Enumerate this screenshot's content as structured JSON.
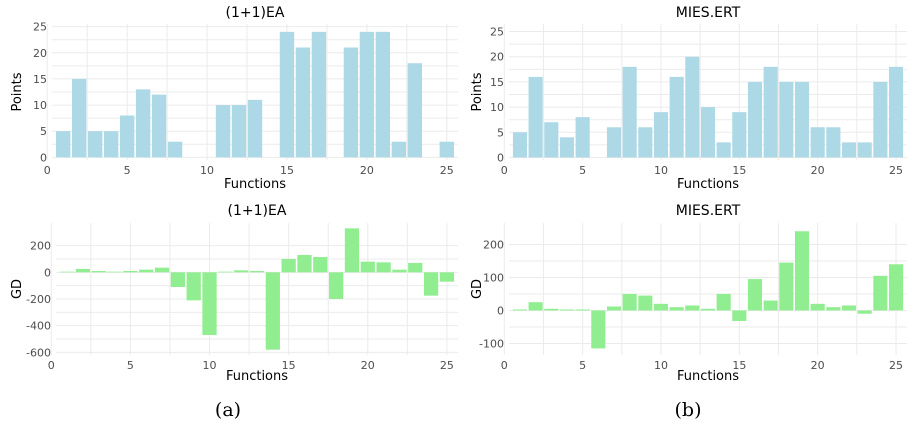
{
  "captions": [
    "(a)",
    "(b)"
  ],
  "chart_data": [
    {
      "type": "bar",
      "title": "(1+1)EA",
      "xlabel": "Functions",
      "ylabel": "Points",
      "color": "#add8e6",
      "x": [
        1,
        2,
        3,
        4,
        5,
        6,
        7,
        8,
        9,
        10,
        11,
        12,
        13,
        14,
        15,
        16,
        17,
        18,
        19,
        20,
        21,
        22,
        23,
        24,
        25
      ],
      "values": [
        5,
        15,
        5,
        5,
        8,
        13,
        12,
        3,
        0,
        0,
        10,
        10,
        11,
        0,
        24,
        21,
        24,
        0,
        21,
        24,
        24,
        3,
        18,
        0,
        3
      ],
      "xlim": [
        0.3,
        25.7
      ],
      "ylim": [
        -0.5,
        25.5
      ],
      "xticks": [
        0,
        5,
        10,
        15,
        20,
        25
      ],
      "yticks": [
        0,
        5,
        10,
        15,
        20,
        25
      ]
    },
    {
      "type": "bar",
      "title": "MIES.ERT",
      "xlabel": "Functions",
      "ylabel": "Points",
      "color": "#add8e6",
      "x": [
        1,
        2,
        3,
        4,
        5,
        6,
        7,
        8,
        9,
        10,
        11,
        12,
        13,
        14,
        15,
        16,
        17,
        18,
        19,
        20,
        21,
        22,
        23,
        24,
        25
      ],
      "values": [
        5,
        16,
        7,
        4,
        8,
        0,
        6,
        18,
        6,
        9,
        16,
        20,
        10,
        3,
        9,
        15,
        18,
        15,
        15,
        6,
        6,
        3,
        3,
        15,
        18
      ],
      "xlim": [
        0.3,
        25.7
      ],
      "ylim": [
        -0.5,
        26.5
      ],
      "xticks": [
        0,
        5,
        10,
        15,
        20,
        25
      ],
      "yticks": [
        0,
        5,
        10,
        15,
        20,
        25
      ]
    },
    {
      "type": "bar",
      "title": "(1+1)EA",
      "xlabel": "Functions",
      "ylabel": "GD",
      "color": "#90ee90",
      "x": [
        1,
        2,
        3,
        4,
        5,
        6,
        7,
        8,
        9,
        10,
        11,
        12,
        13,
        14,
        15,
        16,
        17,
        18,
        19,
        20,
        21,
        22,
        23,
        24,
        25
      ],
      "values": [
        5,
        25,
        10,
        5,
        10,
        20,
        35,
        -110,
        -210,
        -470,
        5,
        15,
        10,
        -580,
        100,
        130,
        115,
        -200,
        330,
        80,
        75,
        20,
        70,
        -175,
        -70
      ],
      "xlim": [
        0.3,
        25.7
      ],
      "ylim": [
        -620,
        370
      ],
      "xticks": [
        0,
        5,
        10,
        15,
        20,
        25
      ],
      "yticks": [
        -600,
        -400,
        -200,
        0,
        200
      ]
    },
    {
      "type": "bar",
      "title": "MIES.ERT",
      "xlabel": "Functions",
      "ylabel": "GD",
      "color": "#90ee90",
      "x": [
        1,
        2,
        3,
        4,
        5,
        6,
        7,
        8,
        9,
        10,
        11,
        12,
        13,
        14,
        15,
        16,
        17,
        18,
        19,
        20,
        21,
        22,
        23,
        24,
        25
      ],
      "values": [
        3,
        25,
        5,
        3,
        3,
        -115,
        12,
        50,
        45,
        20,
        10,
        15,
        5,
        50,
        -32,
        95,
        30,
        145,
        240,
        20,
        10,
        15,
        -10,
        105,
        140
      ],
      "xlim": [
        0.3,
        25.7
      ],
      "ylim": [
        -135,
        265
      ],
      "xticks": [
        0,
        5,
        10,
        15,
        20,
        25
      ],
      "yticks": [
        -100,
        0,
        100,
        200
      ]
    }
  ]
}
